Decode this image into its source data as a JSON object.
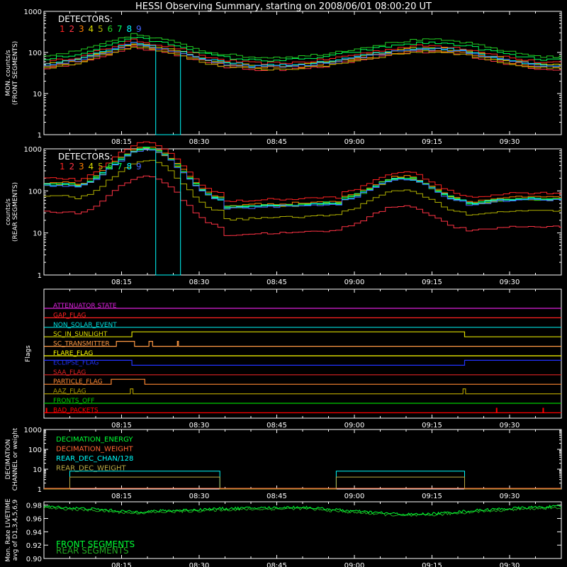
{
  "title": "HESSI Observing Summary, starting on 2008/06/01 08:00:20 UT",
  "colors": {
    "background": "#000000",
    "axis": "#ffffff",
    "det": [
      "#ff2222",
      "#ff3344",
      "#ff7f00",
      "#dddd00",
      "#b0b000",
      "#22cc22",
      "#00ff55",
      "#00ffff",
      "#4466ff"
    ],
    "front_segments": "#00ff33",
    "rear_segments": "#22aa22"
  },
  "time_ticks": [
    "08:15",
    "08:30",
    "08:45",
    "09:00",
    "09:15",
    "09:30"
  ],
  "chart_data": [
    {
      "type": "line",
      "id": "front",
      "ylabel": [
        "MON. counts/s",
        "(FRONT SEGMENTS)"
      ],
      "yscale": "log",
      "ylim": [
        1,
        1000
      ],
      "yticks": [
        "1",
        "10",
        "100",
        "1000"
      ],
      "legend_title": "DETECTORS:",
      "legend_numbers": [
        "1",
        "2",
        "3",
        "4",
        "5",
        "6",
        "7",
        "8",
        "9"
      ],
      "x_minutes": [
        0,
        7,
        12,
        17,
        20,
        26,
        30,
        35,
        40,
        45,
        50,
        55,
        60,
        65,
        68,
        72,
        76,
        80,
        85,
        90,
        95,
        100
      ],
      "base_profile": [
        50,
        70,
        110,
        175,
        145,
        105,
        70,
        55,
        48,
        48,
        51,
        61,
        78,
        99,
        113,
        126,
        126,
        113,
        85,
        63,
        51,
        48
      ],
      "detector_factors": [
        1.15,
        0.8,
        0.9,
        1.0,
        0.82,
        1.6,
        1.35,
        1.0,
        0.95
      ],
      "dropout": {
        "detector": 8,
        "start": 20.7,
        "end": 25.8,
        "value": 1
      }
    },
    {
      "type": "line",
      "id": "rear",
      "ylabel": [
        "counts/s",
        "(REAR SEGMENTS)"
      ],
      "yscale": "log",
      "ylim": [
        1,
        1000
      ],
      "yticks": [
        "1",
        "10",
        "100",
        "1000"
      ],
      "legend_title": "DETECTORS:",
      "legend_numbers": [
        "1",
        "2",
        "3",
        "4",
        "5",
        "6",
        "7",
        "8",
        "9"
      ],
      "segments": [
        [
          5,
          34
        ],
        [
          34,
          56.5
        ],
        [
          56.5,
          81.3
        ],
        [
          81.3,
          100
        ]
      ],
      "segment_levels": [
        {
          "start": [
            2.1,
            0.35
          ],
          "mid": [
            3.0,
            0.7
          ],
          "end": [
            1.8,
            0.35
          ]
        },
        {
          "start": [
            1.6,
            0.2
          ],
          "mid": [
            1.65,
            0.2
          ],
          "end": [
            1.7,
            0.2
          ]
        },
        {
          "start": [
            1.8,
            0.3
          ],
          "mid": [
            2.3,
            0.6
          ],
          "end": [
            1.75,
            0.25
          ]
        },
        {
          "start": [
            1.7,
            0.3
          ],
          "mid": [
            1.8,
            0.3
          ],
          "end": [
            1.8,
            0.3
          ]
        }
      ],
      "pre_level": [
        2.15,
        0.45
      ],
      "detector_offsets": [
        0.15,
        0.08,
        0.05,
        0.0,
        0.0,
        0.0,
        0.02,
        0.0,
        -0.02
      ],
      "low_detectors": {
        "2": -0.65,
        "5": -0.28
      },
      "dropout": {
        "detector": 8,
        "start": 20.7,
        "end": 25.8,
        "value": 1
      }
    },
    {
      "type": "table",
      "id": "flags",
      "ylabel": "Flags",
      "rows": [
        {
          "label": "ATTENUATOR STATE",
          "color": "#dd22dd",
          "changes": []
        },
        {
          "label": "GAP_FLAG",
          "color": "#ff2222",
          "changes": []
        },
        {
          "label": "NON_SOLAR_EVENT",
          "color": "#00dddd",
          "changes": []
        },
        {
          "label": "SC_IN_SUNLIGHT",
          "color": "#dddd00",
          "changes": [
            [
              0,
              0
            ],
            [
              17,
              1
            ],
            [
              81.3,
              0
            ]
          ]
        },
        {
          "label": "SC_TRANSMITTER",
          "color": "#ff9944",
          "changes": [
            [
              0,
              0
            ],
            [
              14,
              1
            ],
            [
              17.5,
              0
            ],
            [
              20.3,
              1
            ],
            [
              21,
              0
            ],
            [
              25.8,
              1
            ],
            [
              26,
              0
            ]
          ]
        },
        {
          "label": "FLARE_FLAG",
          "color": "#ffff00",
          "changes": []
        },
        {
          "label": "ECLIPSE_FLAG",
          "color": "#2233ff",
          "changes": [
            [
              0,
              1
            ],
            [
              17,
              0
            ],
            [
              81.3,
              1
            ]
          ]
        },
        {
          "label": "SAA_FLAG",
          "color": "#dd2222",
          "changes": []
        },
        {
          "label": "PARTICLE_FLAG",
          "color": "#ff8833",
          "changes": [
            [
              0,
              0
            ],
            [
              13,
              1
            ],
            [
              19.5,
              0
            ]
          ]
        },
        {
          "label": "AAZ_FLAG",
          "color": "#aa9900",
          "changes": [
            [
              0,
              0
            ],
            [
              16.7,
              1
            ],
            [
              17.2,
              0
            ],
            [
              81,
              1
            ],
            [
              81.5,
              0
            ]
          ]
        },
        {
          "label": "FRONTS_OFF",
          "color": "#00cc00",
          "changes": []
        },
        {
          "label": "BAD_PACKETS",
          "color": "#ff0000",
          "changes": [],
          "spikes": [
            0.5,
            87.5,
            96.5
          ]
        }
      ]
    },
    {
      "type": "line",
      "id": "decimation",
      "ylabel": [
        "DECIMATION",
        "CHANNEL or weight"
      ],
      "yscale": "log",
      "ylim": [
        1,
        1000
      ],
      "yticks": [
        "1",
        "10",
        "100",
        "1000"
      ],
      "legend": [
        {
          "name": "DECIMATION_ENERGY",
          "color": "#00ff33"
        },
        {
          "name": "DECIMATION_WEIGHT",
          "color": "#ff6633"
        },
        {
          "name": "REAR_DEC_CHAN/128",
          "color": "#00ffff"
        },
        {
          "name": "REAR_DEC_WEIGHT",
          "color": "#bbaa44"
        }
      ],
      "windows": [
        [
          5,
          34
        ],
        [
          56.5,
          81.3
        ]
      ],
      "on_values": {
        "REAR_DEC_CHAN/128": 8,
        "REAR_DEC_WEIGHT": 4
      },
      "off_value": 1
    },
    {
      "type": "line",
      "id": "livetime",
      "ylabel": [
        "Mon. Rate LIVETIME",
        "avg of D1,3,4,5,6,9"
      ],
      "ylim": [
        0.9,
        0.985
      ],
      "yticks": [
        "0.90",
        "0.92",
        "0.94",
        "0.96",
        "0.98"
      ],
      "ytick_values": [
        0.9,
        0.92,
        0.94,
        0.96,
        0.98
      ],
      "legend": [
        {
          "name": "FRONT SEGMENTS",
          "color": "#00ff33"
        },
        {
          "name": "REAR SEGMENTS",
          "color": "#22aa22"
        }
      ],
      "x_minutes": [
        0,
        10,
        17,
        25,
        35,
        50,
        60,
        70,
        75,
        85,
        95,
        100
      ],
      "front": [
        0.978,
        0.974,
        0.97,
        0.972,
        0.975,
        0.977,
        0.971,
        0.966,
        0.967,
        0.973,
        0.977,
        0.978
      ],
      "rear": [
        0.976,
        0.972,
        0.968,
        0.97,
        0.973,
        0.975,
        0.969,
        0.964,
        0.965,
        0.971,
        0.975,
        0.976
      ]
    }
  ]
}
